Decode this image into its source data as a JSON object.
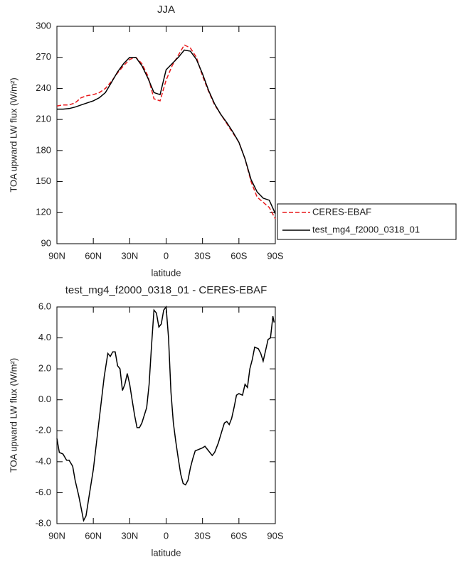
{
  "chart_data": [
    {
      "type": "line",
      "title": "JJA",
      "xlabel": "latitude",
      "ylabel": "TOA upward LW flux (W/m²)",
      "x": [
        90,
        85,
        80,
        75,
        70,
        65,
        60,
        55,
        50,
        45,
        40,
        35,
        30,
        25,
        20,
        15,
        10,
        5,
        0,
        -5,
        -10,
        -15,
        -20,
        -25,
        -30,
        -35,
        -40,
        -45,
        -50,
        -55,
        -60,
        -65,
        -70,
        -75,
        -80,
        -85,
        -90
      ],
      "series": [
        {
          "name": "CERES-EBAF",
          "color": "#e8191c",
          "dash": true,
          "values": [
            223,
            224,
            224,
            226,
            231,
            233,
            234,
            236,
            240,
            247,
            255,
            262,
            268,
            270,
            264,
            252,
            230,
            228,
            248,
            262,
            272,
            282,
            279,
            270,
            252,
            237,
            224,
            215,
            206,
            197,
            188,
            172,
            150,
            135,
            130,
            125,
            114
          ]
        },
        {
          "name": "test_mg4_f2000_0318_01",
          "color": "#000000",
          "dash": false,
          "values": [
            220,
            220,
            220.5,
            222,
            224,
            226,
            228,
            231,
            236,
            246,
            256,
            264,
            270,
            270,
            262,
            250,
            236,
            234,
            258,
            264,
            270,
            277,
            276,
            268,
            254,
            238,
            225,
            215,
            207,
            198,
            188,
            172,
            152,
            140,
            134,
            132,
            119
          ]
        }
      ],
      "xlim": [
        90,
        -90
      ],
      "xticks": [
        {
          "value": 90,
          "label": "90N"
        },
        {
          "value": 60,
          "label": "60N"
        },
        {
          "value": 30,
          "label": "30N"
        },
        0,
        {
          "value": -30,
          "label": "30S"
        },
        {
          "value": -60,
          "label": "60S"
        },
        {
          "value": -90,
          "label": "90S"
        }
      ],
      "ylim": [
        90,
        300
      ],
      "yticks": [
        90,
        120,
        150,
        180,
        210,
        240,
        270,
        300
      ]
    },
    {
      "type": "line",
      "title": "test_mg4_f2000_0318_01 - CERES-EBAF",
      "xlabel": "latitude",
      "ylabel": "TOA upward LW flux (W/m²)",
      "x": [
        90,
        88,
        85,
        82,
        80,
        77,
        75,
        72,
        70,
        68,
        66,
        63,
        60,
        57,
        54,
        51,
        48,
        46,
        44,
        42,
        40,
        38,
        36,
        34,
        32,
        30,
        28,
        26,
        24,
        22,
        20,
        18,
        16,
        14,
        12,
        10,
        8,
        6,
        4,
        2,
        0,
        -2,
        -4,
        -6,
        -8,
        -10,
        -12,
        -14,
        -16,
        -18,
        -20,
        -22,
        -24,
        -27,
        -30,
        -32,
        -35,
        -38,
        -40,
        -43,
        -46,
        -48,
        -50,
        -52,
        -54,
        -56,
        -58,
        -60,
        -63,
        -65,
        -67,
        -69,
        -71,
        -73,
        -76,
        -78,
        -80,
        -82,
        -84,
        -86,
        -88,
        -89
      ],
      "series": [
        {
          "color": "#000000",
          "dash": false,
          "values": [
            -2.5,
            -3.4,
            -3.5,
            -3.9,
            -3.9,
            -4.3,
            -5.2,
            -6.2,
            -7.0,
            -7.8,
            -7.5,
            -6.0,
            -4.5,
            -2.5,
            -0.5,
            1.5,
            3.0,
            2.8,
            3.1,
            3.1,
            2.2,
            2.0,
            0.6,
            1.0,
            1.7,
            1.0,
            0.0,
            -1.0,
            -1.8,
            -1.8,
            -1.5,
            -1.0,
            -0.5,
            1.0,
            3.5,
            5.8,
            5.6,
            4.7,
            4.9,
            5.8,
            6.0,
            4.0,
            0.5,
            -1.5,
            -2.7,
            -3.8,
            -4.8,
            -5.4,
            -5.5,
            -5.2,
            -4.4,
            -3.8,
            -3.3,
            -3.2,
            -3.1,
            -3.0,
            -3.3,
            -3.6,
            -3.4,
            -2.8,
            -2.0,
            -1.5,
            -1.4,
            -1.6,
            -1.2,
            -0.5,
            0.3,
            0.4,
            0.3,
            1.0,
            0.8,
            2.0,
            2.6,
            3.4,
            3.3,
            3.0,
            2.5,
            3.2,
            3.9,
            4.0,
            5.4,
            5.0
          ]
        }
      ],
      "xlim": [
        90,
        -90
      ],
      "xticks": [
        {
          "value": 90,
          "label": "90N"
        },
        {
          "value": 60,
          "label": "60N"
        },
        {
          "value": 30,
          "label": "30N"
        },
        0,
        {
          "value": -30,
          "label": "30S"
        },
        {
          "value": -60,
          "label": "60S"
        },
        {
          "value": -90,
          "label": "90S"
        }
      ],
      "ylim": [
        -8,
        6
      ],
      "yticks": [
        {
          "value": -8,
          "label": "-8.0"
        },
        {
          "value": -6,
          "label": "-6.0"
        },
        {
          "value": -4,
          "label": "-4.0"
        },
        {
          "value": -2,
          "label": "-2.0"
        },
        {
          "value": 0,
          "label": "0.0"
        },
        {
          "value": 2,
          "label": "2.0"
        },
        {
          "value": 4,
          "label": "4.0"
        },
        {
          "value": 6,
          "label": "6.0"
        }
      ]
    }
  ]
}
